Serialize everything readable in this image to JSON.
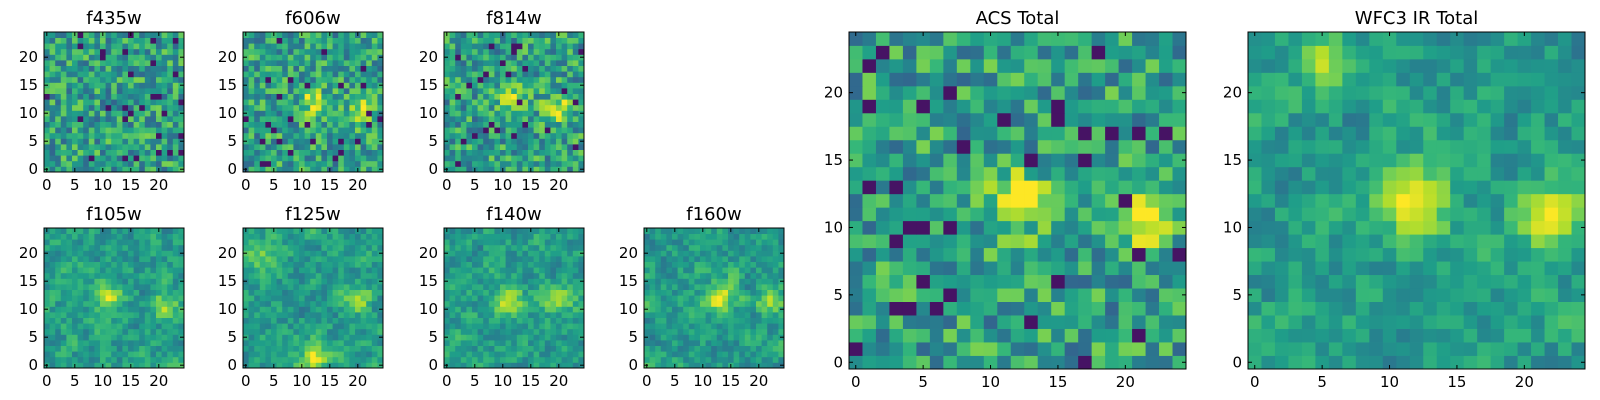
{
  "chart_data": [
    {
      "type": "heatmap",
      "title": "f435w",
      "xticks": [
        "0",
        "5",
        "10",
        "15",
        "20"
      ],
      "yticks": [
        "0",
        "5",
        "10",
        "15",
        "20"
      ],
      "range": [
        0,
        24
      ],
      "grid": false,
      "colormap": "viridis",
      "hotspots": []
    },
    {
      "type": "heatmap",
      "title": "f606w",
      "xticks": [
        "0",
        "5",
        "10",
        "15",
        "20"
      ],
      "yticks": [
        "0",
        "5",
        "10",
        "15",
        "20"
      ],
      "range": [
        0,
        24
      ],
      "grid": false,
      "colormap": "viridis",
      "hotspots": [
        {
          "x": 12,
          "y": 12,
          "s": 0.3
        },
        {
          "x": 21,
          "y": 11,
          "s": 0.35
        }
      ]
    },
    {
      "type": "heatmap",
      "title": "f814w",
      "xticks": [
        "0",
        "5",
        "10",
        "15",
        "20"
      ],
      "yticks": [
        "0",
        "5",
        "10",
        "15",
        "20"
      ],
      "range": [
        0,
        24
      ],
      "grid": false,
      "colormap": "viridis",
      "hotspots": [
        {
          "x": 12,
          "y": 12,
          "s": 0.3
        },
        {
          "x": 20,
          "y": 11,
          "s": 0.35
        }
      ]
    },
    {
      "type": "heatmap",
      "title": "f105w",
      "xticks": [
        "0",
        "5",
        "10",
        "15",
        "20"
      ],
      "yticks": [
        "0",
        "5",
        "10",
        "15",
        "20"
      ],
      "range": [
        0,
        24
      ],
      "grid": false,
      "colormap": "viridis",
      "hotspots": [
        {
          "x": 11,
          "y": 12,
          "s": 0.35
        },
        {
          "x": 21,
          "y": 11,
          "s": 0.3
        }
      ]
    },
    {
      "type": "heatmap",
      "title": "f125w",
      "xticks": [
        "0",
        "5",
        "10",
        "15",
        "20"
      ],
      "yticks": [
        "0",
        "5",
        "10",
        "15",
        "20"
      ],
      "range": [
        0,
        24
      ],
      "grid": false,
      "colormap": "viridis",
      "hotspots": [
        {
          "x": 12,
          "y": 1,
          "s": 0.4
        },
        {
          "x": 20,
          "y": 12,
          "s": 0.3
        },
        {
          "x": 3,
          "y": 19,
          "s": 0.25
        }
      ]
    },
    {
      "type": "heatmap",
      "title": "f140w",
      "xticks": [
        "0",
        "5",
        "10",
        "15",
        "20"
      ],
      "yticks": [
        "0",
        "5",
        "10",
        "15",
        "20"
      ],
      "range": [
        0,
        24
      ],
      "grid": false,
      "colormap": "viridis",
      "hotspots": [
        {
          "x": 11,
          "y": 12,
          "s": 0.4
        },
        {
          "x": 20,
          "y": 12,
          "s": 0.3
        }
      ]
    },
    {
      "type": "heatmap",
      "title": "f160w",
      "xticks": [
        "0",
        "5",
        "10",
        "15",
        "20"
      ],
      "yticks": [
        "0",
        "5",
        "10",
        "15",
        "20"
      ],
      "range": [
        0,
        24
      ],
      "grid": false,
      "colormap": "viridis",
      "hotspots": [
        {
          "x": 13,
          "y": 12,
          "s": 0.45
        },
        {
          "x": 22,
          "y": 12,
          "s": 0.3
        }
      ]
    },
    {
      "type": "heatmap",
      "title": "ACS Total",
      "xticks": [
        "0",
        "5",
        "10",
        "15",
        "20"
      ],
      "yticks": [
        "0",
        "5",
        "10",
        "15",
        "20"
      ],
      "range": [
        0,
        24
      ],
      "grid": false,
      "colormap": "viridis",
      "hotspots": [
        {
          "x": 12,
          "y": 12,
          "s": 0.4
        },
        {
          "x": 21,
          "y": 11,
          "s": 0.45
        }
      ]
    },
    {
      "type": "heatmap",
      "title": "WFC3 IR Total",
      "xticks": [
        "0",
        "5",
        "10",
        "15",
        "20"
      ],
      "yticks": [
        "0",
        "5",
        "10",
        "15",
        "20"
      ],
      "range": [
        0,
        24
      ],
      "grid": false,
      "colormap": "viridis",
      "hotspots": [
        {
          "x": 12,
          "y": 12,
          "s": 0.55
        },
        {
          "x": 22,
          "y": 11,
          "s": 0.35
        },
        {
          "x": 5,
          "y": 22,
          "s": 0.25
        }
      ]
    }
  ]
}
